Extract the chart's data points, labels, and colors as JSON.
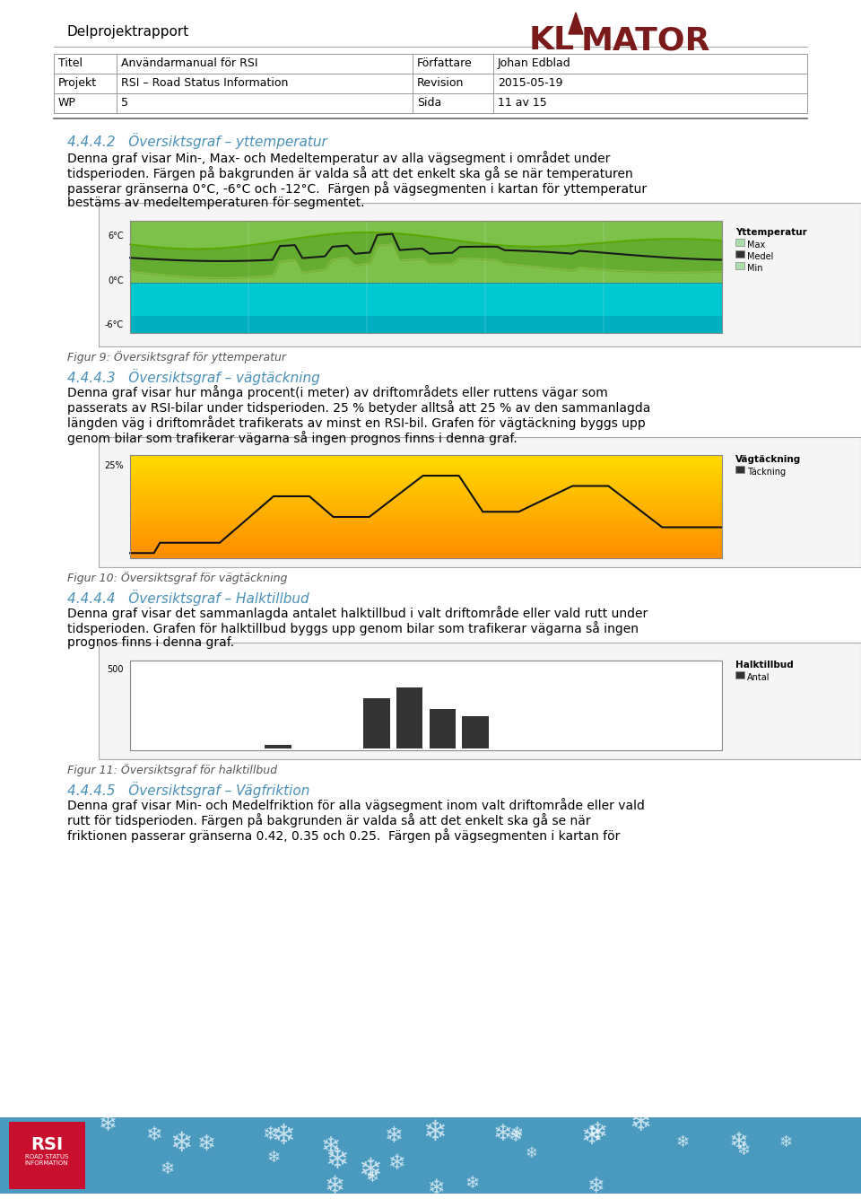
{
  "page_title": "Delprojektrapport",
  "logo_text": "KL▲MATOR",
  "table": {
    "rows": [
      [
        "Titel",
        "Användarmanual för RSI",
        "Författare",
        "Johan Edblad"
      ],
      [
        "Projekt",
        "RSI – Road Status Information",
        "Revision",
        "2015-05-19"
      ],
      [
        "WP",
        "5",
        "Sida",
        "11 av 15"
      ]
    ]
  },
  "section1_heading": "4.4.4.2   Översiktsgraf – yttemperatur",
  "section1_text": "Denna graf visar Min-, Max- och Medeltemperatur av alla vägsegment i området under\ntidsperioden. Färgen på bakgrunden är valda så att det enkelt ska gå se när temperaturen\npasserar gränserna 0°C, -6°C och -12°C.  Färgen på vägsegmenten i kartan för yttemperatur\nbestäms av medeltemperaturen för segmentet.",
  "fig9_caption": "Figur 9: Översiktsgraf för yttemperatur",
  "section2_heading": "4.4.4.3   Översiktsgraf – vägtäckning",
  "section2_text": "Denna graf visar hur många procent(i meter) av driftområdets eller ruttens vägar som\npasserats av RSI-bilar under tidsperioden. 25 % betyder alltså att 25 % av den sammanlagda\nlängden väg i driftområdet trafikerats av minst en RSI-bil. Grafen för vägtäckning byggs upp\ngenom bilar som trafikerar vägarna så ingen prognos finns i denna graf.",
  "fig10_caption": "Figur 10: Översiktsgraf för vägtäckning",
  "section3_heading": "4.4.4.4   Översiktsgraf – Halktillbud",
  "section3_text": "Denna graf visar det sammanlagda antalet halktillbud i valt driftområde eller vald rutt under\ntidsperioden. Grafen för halktillbud byggs upp genom bilar som trafikerar vägarna så ingen\nprognos finns i denna graf.",
  "fig11_caption": "Figur 11: Översiktsgraf för halktillbud",
  "section4_heading": "4.4.4.5   Översiktsgraf – Vägfriktion",
  "section4_text": "Denna graf visar Min- och Medelfriktion för alla vägsegment inom valt driftområde eller vald\nrutt för tidsperioden. Färgen på bakgrunden är valda så att det enkelt ska gå se när\nfriktionen passerar gränserna 0.42, 0.35 och 0.25.  Färgen på vägsegmenten i kartan för",
  "heading_color": "#4a90b8",
  "caption_color": "#555555",
  "table_border_color": "#999999",
  "bg_color": "#ffffff",
  "footer_bg": "#1a6699",
  "divider_color": "#999999"
}
